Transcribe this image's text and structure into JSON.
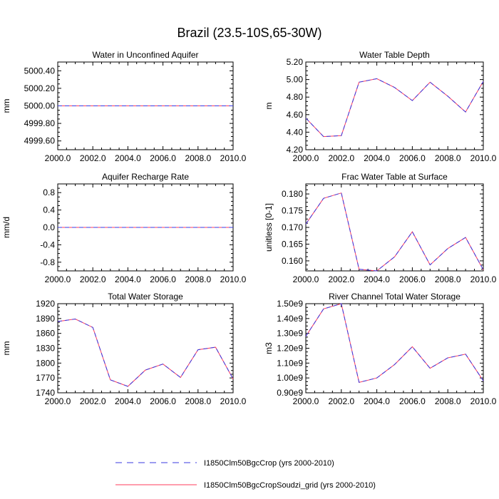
{
  "title": "Brazil (23.5-10S,65-30W)",
  "colors": {
    "series1": "#3a3ae0",
    "series2": "#ff3b5c",
    "axis": "#000000"
  },
  "legend": [
    {
      "name": "I1850Clm50BgcCrop (yrs 2000-2010)",
      "style": "dashed",
      "color": "#3a3ae0"
    },
    {
      "name": "I1850Clm50BgcCropSoudzi_grid (yrs 2000-2010)",
      "style": "solid",
      "color": "#ff3b5c"
    }
  ],
  "chart_data": [
    {
      "type": "line",
      "title": "Water in Unconfined Aquifer",
      "ylabel": "mm",
      "xlim": [
        2000,
        2010
      ],
      "ylim": [
        4999.5,
        5000.5
      ],
      "xticks": [
        "2000.0",
        "2002.0",
        "2004.0",
        "2006.0",
        "2008.0",
        "2010.0"
      ],
      "yticks": [
        4999.6,
        4999.8,
        5000.0,
        5000.2,
        5000.4
      ],
      "ytick_labels": [
        "4999.60",
        "4999.80",
        "5000.00",
        "5000.20",
        "5000.40"
      ],
      "x": [
        2000,
        2001,
        2002,
        2003,
        2004,
        2005,
        2006,
        2007,
        2008,
        2009,
        2010
      ],
      "series": [
        {
          "values": [
            5000,
            5000,
            5000,
            5000,
            5000,
            5000,
            5000,
            5000,
            5000,
            5000,
            5000
          ]
        },
        {
          "values": [
            5000,
            5000,
            5000,
            5000,
            5000,
            5000,
            5000,
            5000,
            5000,
            5000,
            5000
          ]
        }
      ]
    },
    {
      "type": "line",
      "title": "Water Table Depth",
      "ylabel": "m",
      "xlim": [
        2000,
        2010
      ],
      "ylim": [
        4.2,
        5.2
      ],
      "xticks": [
        "2000.0",
        "2002.0",
        "2004.0",
        "2006.0",
        "2008.0",
        "2010.0"
      ],
      "yticks": [
        4.2,
        4.4,
        4.6,
        4.8,
        5.0,
        5.2
      ],
      "ytick_labels": [
        "4.20",
        "4.40",
        "4.60",
        "4.80",
        "5.00",
        "5.20"
      ],
      "x": [
        2000,
        2001,
        2002,
        2003,
        2004,
        2005,
        2006,
        2007,
        2008,
        2009,
        2010
      ],
      "series": [
        {
          "values": [
            4.56,
            4.35,
            4.36,
            4.97,
            5.01,
            4.91,
            4.76,
            4.97,
            4.81,
            4.63,
            4.98
          ]
        },
        {
          "values": [
            4.56,
            4.35,
            4.36,
            4.97,
            5.01,
            4.91,
            4.76,
            4.97,
            4.81,
            4.63,
            4.98
          ]
        }
      ]
    },
    {
      "type": "line",
      "title": "Aquifer Recharge Rate",
      "ylabel": "mm/d",
      "xlim": [
        2000,
        2010
      ],
      "ylim": [
        -1.0,
        1.0
      ],
      "xticks": [
        "2000.0",
        "2002.0",
        "2004.0",
        "2006.0",
        "2008.0",
        "2010.0"
      ],
      "yticks": [
        -0.8,
        -0.4,
        0.0,
        0.4,
        0.8
      ],
      "ytick_labels": [
        "-0.8",
        "-0.4",
        "0.0",
        "0.4",
        "0.8"
      ],
      "x": [
        2000,
        2001,
        2002,
        2003,
        2004,
        2005,
        2006,
        2007,
        2008,
        2009,
        2010
      ],
      "series": [
        {
          "values": [
            0,
            0,
            0,
            0,
            0,
            0,
            0,
            0,
            0,
            0,
            0
          ]
        },
        {
          "values": [
            0,
            0,
            0,
            0,
            0,
            0,
            0,
            0,
            0,
            0,
            0
          ]
        }
      ]
    },
    {
      "type": "line",
      "title": "Frac Water Table at Surface",
      "ylabel": "unitless [0-1]",
      "xlim": [
        2000,
        2010
      ],
      "ylim": [
        0.157,
        0.183
      ],
      "xticks": [
        "2000.0",
        "2002.0",
        "2004.0",
        "2006.0",
        "2008.0",
        "2010.0"
      ],
      "yticks": [
        0.16,
        0.165,
        0.17,
        0.175,
        0.18
      ],
      "ytick_labels": [
        "0.160",
        "0.165",
        "0.170",
        "0.175",
        "0.180"
      ],
      "x": [
        2000,
        2001,
        2002,
        2003,
        2004,
        2005,
        2006,
        2007,
        2008,
        2009,
        2010
      ],
      "series": [
        {
          "values": [
            0.171,
            0.1787,
            0.1803,
            0.1575,
            0.157,
            0.1612,
            0.1687,
            0.1588,
            0.1637,
            0.167,
            0.1573
          ]
        },
        {
          "values": [
            0.171,
            0.1787,
            0.1803,
            0.1575,
            0.157,
            0.1612,
            0.1687,
            0.1588,
            0.1637,
            0.167,
            0.1573
          ]
        }
      ]
    },
    {
      "type": "line",
      "title": "Total Water Storage",
      "ylabel": "mm",
      "xlim": [
        2000,
        2010
      ],
      "ylim": [
        1740,
        1920
      ],
      "xticks": [
        "2000.0",
        "2002.0",
        "2004.0",
        "2006.0",
        "2008.0",
        "2010.0"
      ],
      "yticks": [
        1740,
        1770,
        1800,
        1830,
        1860,
        1890,
        1920
      ],
      "ytick_labels": [
        "1740",
        "1770",
        "1800",
        "1830",
        "1860",
        "1890",
        "1920"
      ],
      "x": [
        2000,
        2001,
        2002,
        2003,
        2004,
        2005,
        2006,
        2007,
        2008,
        2009,
        2010
      ],
      "series": [
        {
          "values": [
            1884,
            1889,
            1872,
            1766,
            1753,
            1786,
            1798,
            1771,
            1827,
            1832,
            1768
          ]
        },
        {
          "values": [
            1884,
            1889,
            1872,
            1766,
            1753,
            1786,
            1798,
            1771,
            1827,
            1832,
            1768
          ]
        }
      ]
    },
    {
      "type": "line",
      "title": "River Channel Total Water Storage",
      "ylabel": "m3",
      "xlim": [
        2000,
        2010
      ],
      "ylim": [
        900000000.0,
        1500000000.0
      ],
      "xticks": [
        "2000.0",
        "2002.0",
        "2004.0",
        "2006.0",
        "2008.0",
        "2010.0"
      ],
      "yticks": [
        900000000.0,
        1000000000.0,
        1100000000.0,
        1200000000.0,
        1300000000.0,
        1400000000.0,
        1500000000.0
      ],
      "ytick_labels": [
        "0.90e9",
        "1.00e9",
        "1.10e9",
        "1.20e9",
        "1.30e9",
        "1.40e9",
        "1.50e9"
      ],
      "x": [
        2000,
        2001,
        2002,
        2003,
        2004,
        2005,
        2006,
        2007,
        2008,
        2009,
        2010
      ],
      "series": [
        {
          "values": [
            1280000000.0,
            1465000000.0,
            1500000000.0,
            970000000.0,
            1000000000.0,
            1090000000.0,
            1210000000.0,
            1065000000.0,
            1135000000.0,
            1160000000.0,
            980000000.0
          ]
        },
        {
          "values": [
            1280000000.0,
            1465000000.0,
            1500000000.0,
            970000000.0,
            1000000000.0,
            1090000000.0,
            1210000000.0,
            1065000000.0,
            1135000000.0,
            1160000000.0,
            980000000.0
          ]
        }
      ]
    }
  ]
}
